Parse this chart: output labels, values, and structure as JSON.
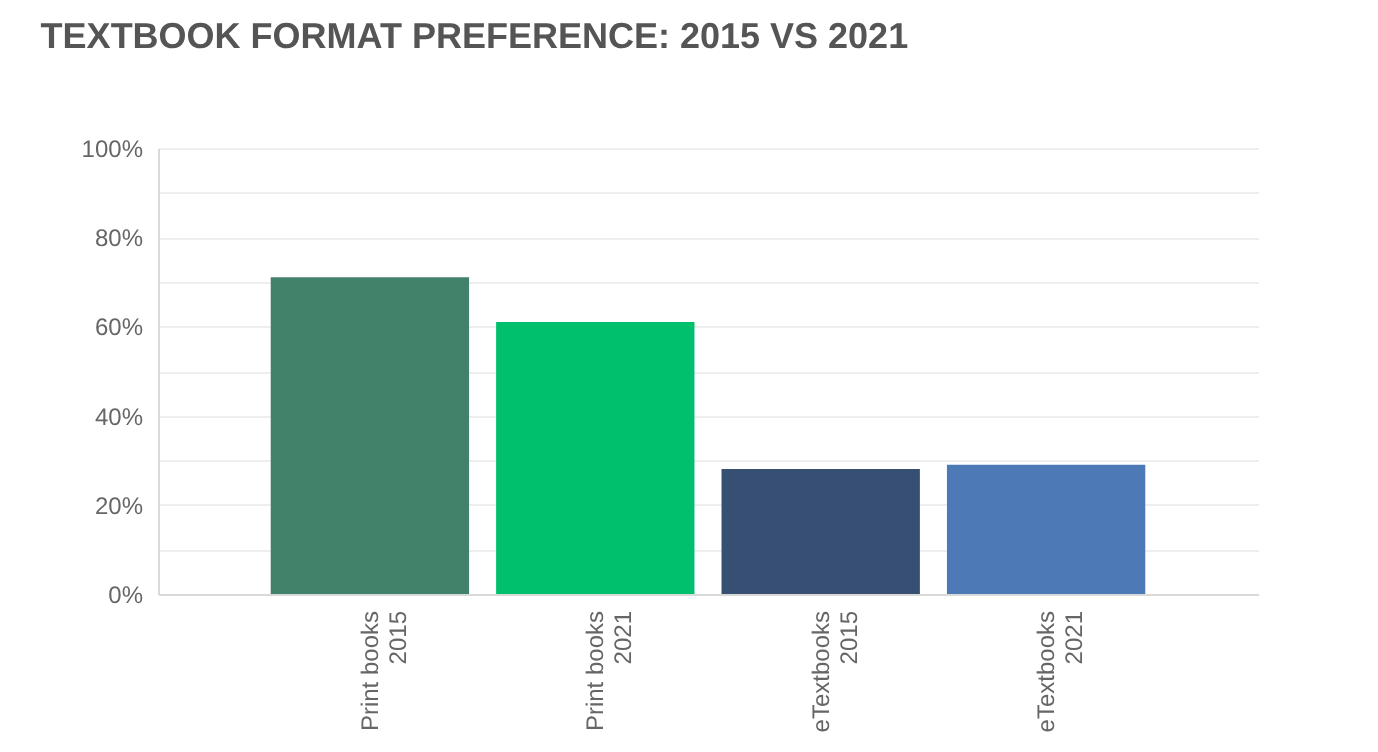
{
  "chart_data": {
    "type": "bar",
    "title": "TEXTBOOK FORMAT PREFERENCE: 2015 VS 2021",
    "categories": [
      "Print books\n2015",
      "Print books\n2021",
      "eTextbooks\n2015",
      "eTextbooks\n2021"
    ],
    "values": [
      71,
      61,
      28,
      29
    ],
    "colors": [
      "#43826a",
      "#00c06e",
      "#364f72",
      "#4d7ab7"
    ],
    "ylim": [
      0,
      100
    ],
    "yticks": [
      {
        "value": 0,
        "label": "0%"
      },
      {
        "value": 10,
        "label": null
      },
      {
        "value": 20,
        "label": "20%"
      },
      {
        "value": 30,
        "label": null
      },
      {
        "value": 40,
        "label": "40%"
      },
      {
        "value": 50,
        "label": null
      },
      {
        "value": 60,
        "label": "60%"
      },
      {
        "value": 70,
        "label": null
      },
      {
        "value": 80,
        "label": "80%"
      },
      {
        "value": 90,
        "label": null
      },
      {
        "value": 100,
        "label": "100%"
      }
    ],
    "grid": "y"
  }
}
